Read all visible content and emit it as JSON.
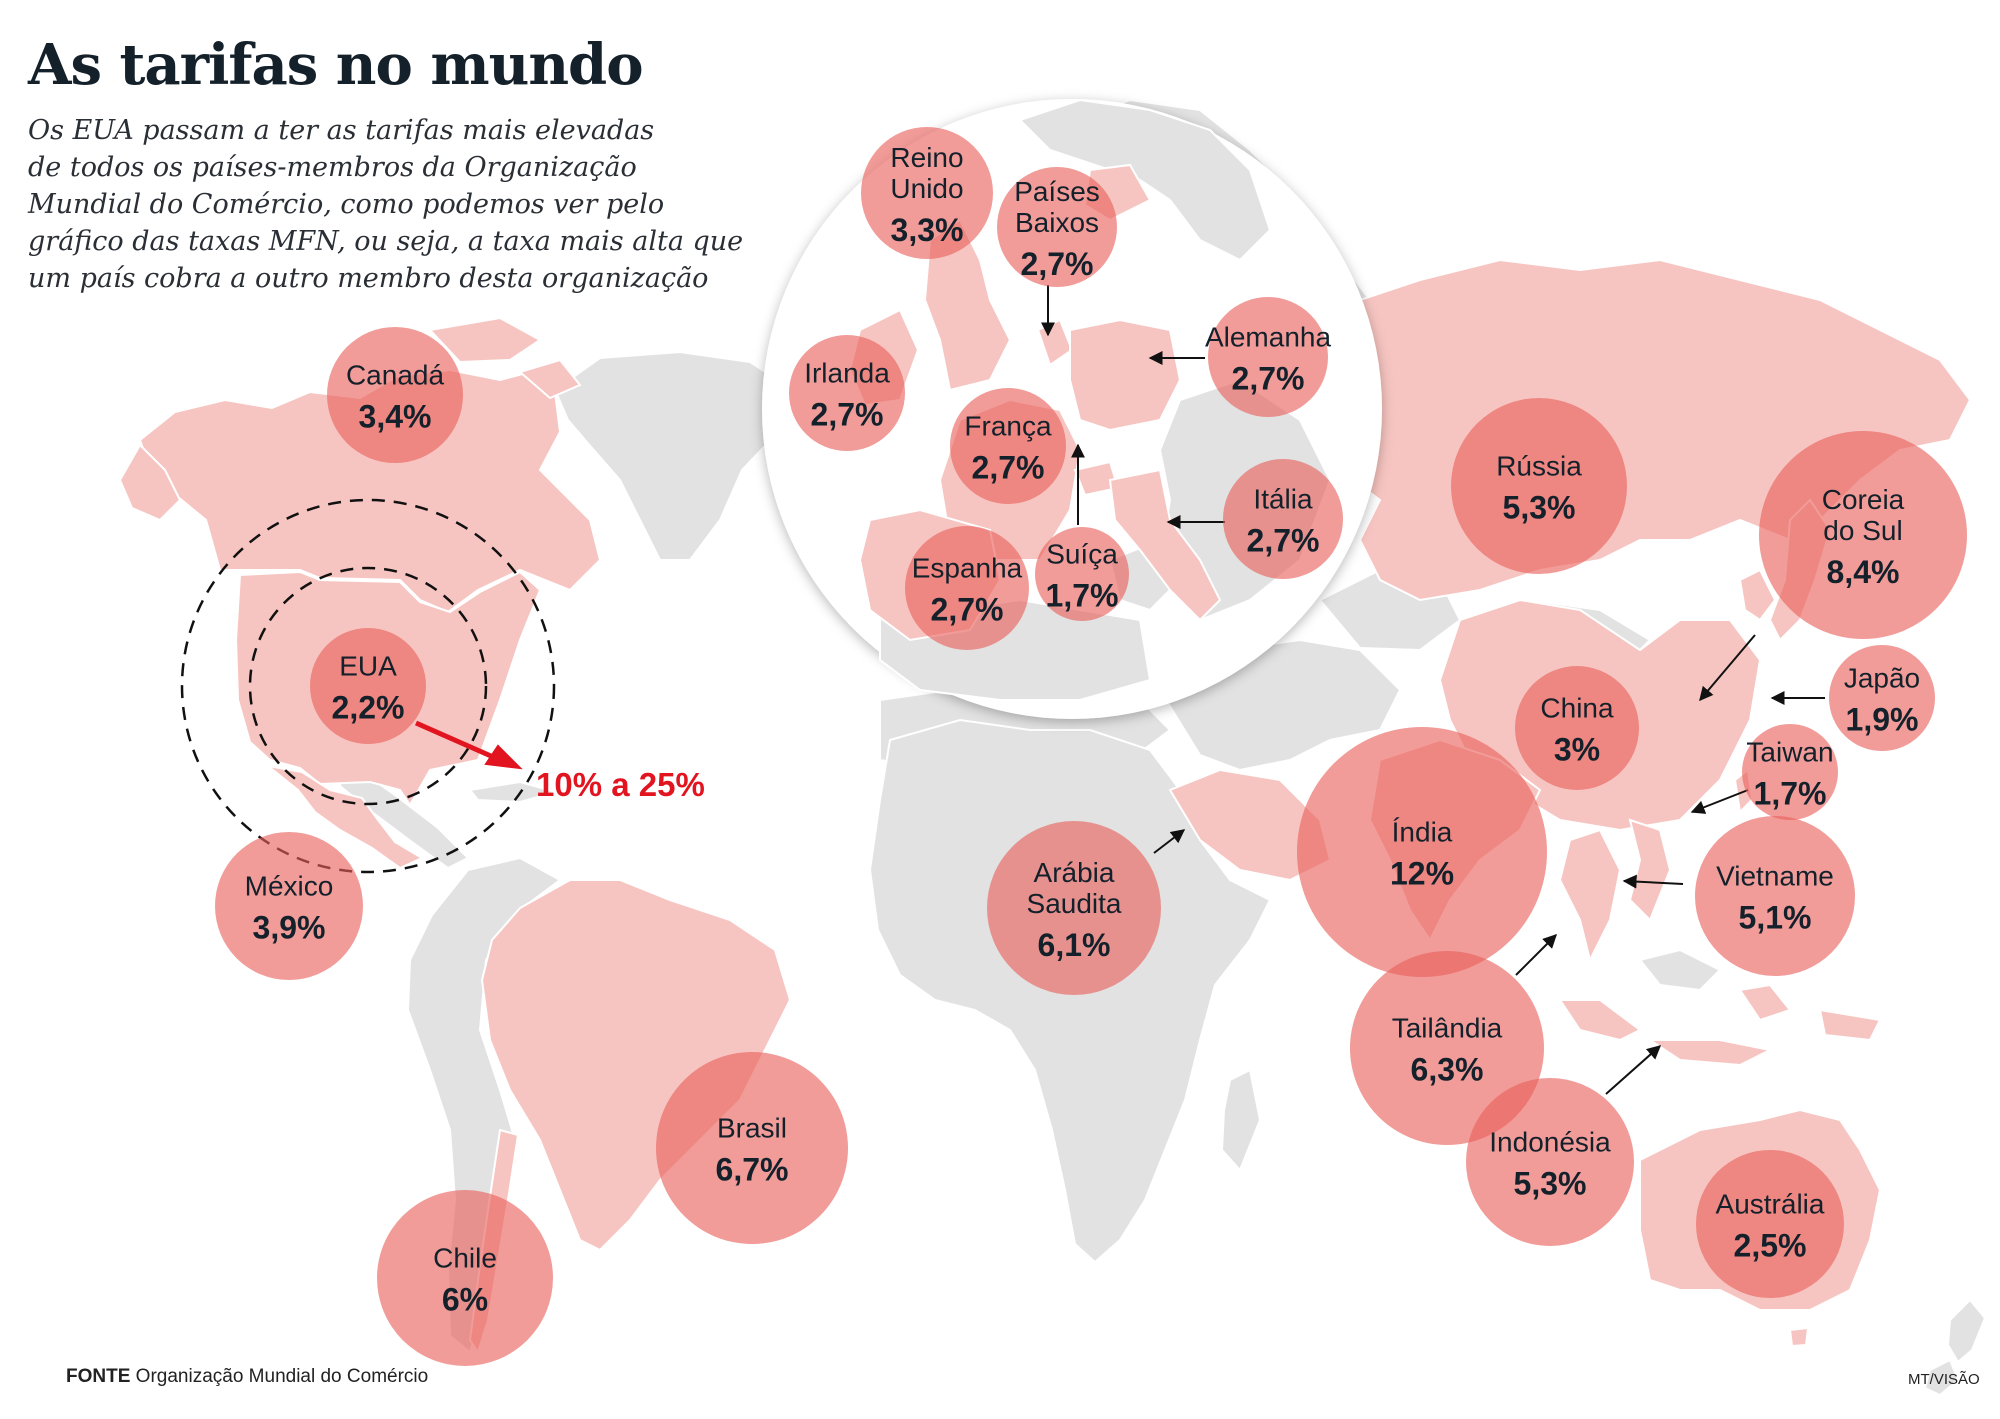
{
  "header": {
    "title": "As tarifas no mundo",
    "subtitle_lines": [
      "Os EUA passam a ter as tarifas mais elevadas",
      "de todos os países-membros da Organização",
      "Mundial do Comércio, como podemos ver pelo",
      "gráfico das taxas MFN, ou seja, a taxa mais alta que",
      "um país cobra a outro membro desta organização"
    ]
  },
  "colors": {
    "land_gray": "#e2e2e2",
    "land_pink": "#f7c5c1",
    "bubble": "#e8605a",
    "accent_red": "#e1141f",
    "text_dark": "#14202a"
  },
  "countries": [
    {
      "id": "canada",
      "label_lines": [
        "Canadá"
      ],
      "value": "3,4%"
    },
    {
      "id": "eua",
      "label_lines": [
        "EUA"
      ],
      "value": "2,2%"
    },
    {
      "id": "mexico",
      "label_lines": [
        "México"
      ],
      "value": "3,9%"
    },
    {
      "id": "brasil",
      "label_lines": [
        "Brasil"
      ],
      "value": "6,7%"
    },
    {
      "id": "chile",
      "label_lines": [
        "Chile"
      ],
      "value": "6%"
    },
    {
      "id": "reino-unido",
      "label_lines": [
        "Reino",
        "Unido"
      ],
      "value": "3,3%"
    },
    {
      "id": "paises-baixos",
      "label_lines": [
        "Países",
        "Baixos"
      ],
      "value": "2,7%"
    },
    {
      "id": "irlanda",
      "label_lines": [
        "Irlanda"
      ],
      "value": "2,7%"
    },
    {
      "id": "alemanha",
      "label_lines": [
        "Alemanha"
      ],
      "value": "2,7%"
    },
    {
      "id": "franca",
      "label_lines": [
        "França"
      ],
      "value": "2,7%"
    },
    {
      "id": "espanha",
      "label_lines": [
        "Espanha"
      ],
      "value": "2,7%"
    },
    {
      "id": "suica",
      "label_lines": [
        "Suíça"
      ],
      "value": "1,7%"
    },
    {
      "id": "italia",
      "label_lines": [
        "Itália"
      ],
      "value": "2,7%"
    },
    {
      "id": "russia",
      "label_lines": [
        "Rússia"
      ],
      "value": "5,3%"
    },
    {
      "id": "coreia-do-sul",
      "label_lines": [
        "Coreia",
        "do Sul"
      ],
      "value": "8,4%"
    },
    {
      "id": "japao",
      "label_lines": [
        "Japão"
      ],
      "value": "1,9%"
    },
    {
      "id": "china",
      "label_lines": [
        "China"
      ],
      "value": "3%"
    },
    {
      "id": "taiwan",
      "label_lines": [
        "Taiwan"
      ],
      "value": "1,7%"
    },
    {
      "id": "india",
      "label_lines": [
        "Índia"
      ],
      "value": "12%"
    },
    {
      "id": "vietname",
      "label_lines": [
        "Vietname"
      ],
      "value": "5,1%"
    },
    {
      "id": "arabia-saudita",
      "label_lines": [
        "Arábia",
        "Saudita"
      ],
      "value": "6,1%"
    },
    {
      "id": "tailandia",
      "label_lines": [
        "Tailândia"
      ],
      "value": "6,3%"
    },
    {
      "id": "indonesia",
      "label_lines": [
        "Indonésia"
      ],
      "value": "5,3%"
    },
    {
      "id": "australia",
      "label_lines": [
        "Austrália"
      ],
      "value": "2,5%"
    }
  ],
  "us_new_tariff": "10% a 25%",
  "footer": {
    "source_label": "FONTE",
    "source_text": "Organização Mundial do Comércio",
    "credit": "MT/VISÃO"
  }
}
